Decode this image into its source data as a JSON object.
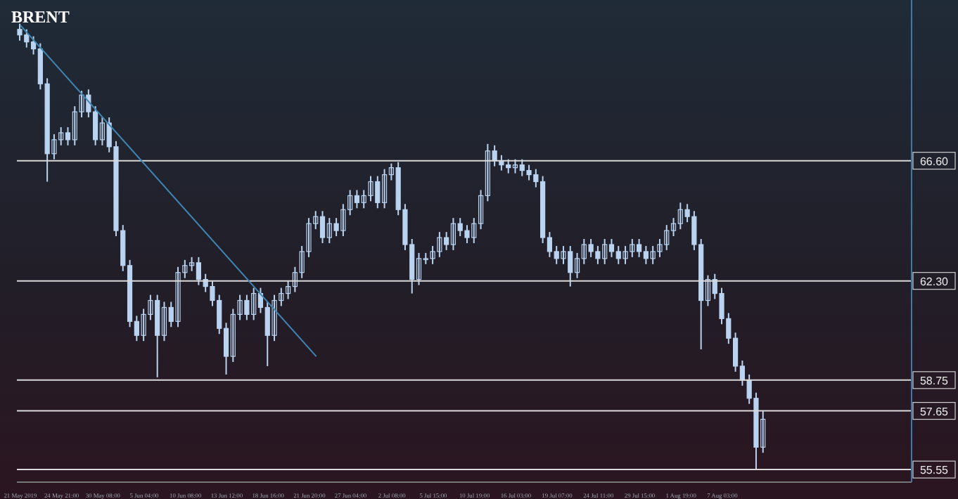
{
  "chart_data": {
    "type": "candlestick",
    "title": "BRENT",
    "color": "#b9d3f0",
    "grid": false,
    "categories": [
      "21 May 2019",
      null,
      null,
      null,
      null,
      null,
      "24 May 21:00",
      null,
      null,
      null,
      null,
      null,
      "30 May 08:00",
      null,
      null,
      null,
      null,
      null,
      "5 Jun 04:00",
      null,
      null,
      null,
      null,
      null,
      "10 Jun 08:00",
      null,
      null,
      null,
      null,
      null,
      "13 Jun 12:00",
      null,
      null,
      null,
      null,
      null,
      "18 Jun 16:00",
      null,
      null,
      null,
      null,
      null,
      "21 Jun 20:00",
      null,
      null,
      null,
      null,
      null,
      "27 Jun 04:00",
      null,
      null,
      null,
      null,
      null,
      "2 Jul 08:00",
      null,
      null,
      null,
      null,
      null,
      "5 Jul 15:00",
      null,
      null,
      null,
      null,
      null,
      "10 Jul 19:00",
      null,
      null,
      null,
      null,
      null,
      "16 Jul 03:00",
      null,
      null,
      null,
      null,
      null,
      "19 Jul 07:00",
      null,
      null,
      null,
      null,
      null,
      "24 Jul 11:00",
      null,
      null,
      null,
      null,
      null,
      "29 Jul 15:00",
      null,
      null,
      null,
      null,
      null,
      "1 Aug 19:00",
      null,
      null,
      null,
      null,
      null,
      "7 Aug 03:00",
      null,
      null,
      null,
      null,
      null,
      null,
      null,
      null,
      null,
      null,
      null,
      null,
      null,
      null,
      null,
      null,
      null,
      null,
      null,
      null,
      null,
      null,
      null,
      null,
      null,
      null,
      null
    ],
    "ohlc": [
      [
        71.3,
        71.5,
        70.9,
        71.1
      ],
      [
        71.1,
        71.3,
        70.65,
        70.85
      ],
      [
        70.85,
        71.05,
        70.4,
        70.6
      ],
      [
        70.6,
        70.8,
        69.15,
        69.35
      ],
      [
        69.35,
        69.55,
        65.85,
        66.85
      ],
      [
        66.85,
        67.55,
        66.65,
        67.35
      ],
      [
        67.35,
        67.8,
        67.15,
        67.6
      ],
      [
        67.6,
        67.8,
        67.15,
        67.35
      ],
      [
        67.35,
        68.55,
        67.15,
        68.35
      ],
      [
        68.35,
        69.1,
        68.15,
        68.95
      ],
      [
        68.95,
        69.15,
        68.15,
        68.35
      ],
      [
        68.35,
        68.55,
        67.15,
        67.35
      ],
      [
        67.35,
        68.15,
        67.15,
        67.95
      ],
      [
        67.95,
        68.15,
        66.9,
        67.1
      ],
      [
        67.1,
        67.3,
        63.9,
        64.1
      ],
      [
        64.1,
        64.3,
        62.65,
        62.85
      ],
      [
        62.85,
        63.05,
        60.65,
        60.85
      ],
      [
        60.85,
        61.05,
        60.15,
        60.35
      ],
      [
        60.35,
        61.3,
        60.15,
        61.1
      ],
      [
        61.1,
        61.8,
        60.9,
        61.6
      ],
      [
        61.6,
        61.8,
        58.85,
        60.35
      ],
      [
        60.35,
        61.55,
        60.15,
        61.35
      ],
      [
        61.35,
        61.55,
        60.65,
        60.85
      ],
      [
        60.85,
        62.8,
        60.65,
        62.6
      ],
      [
        62.6,
        63.05,
        62.4,
        62.85
      ],
      [
        62.85,
        63.15,
        62.65,
        62.95
      ],
      [
        62.95,
        63.15,
        62.15,
        62.35
      ],
      [
        62.35,
        62.55,
        61.9,
        62.1
      ],
      [
        62.1,
        62.3,
        61.4,
        61.6
      ],
      [
        61.6,
        61.8,
        60.4,
        60.6
      ],
      [
        60.6,
        60.8,
        58.95,
        59.6
      ],
      [
        59.6,
        61.3,
        59.4,
        61.1
      ],
      [
        61.1,
        61.8,
        60.9,
        61.6
      ],
      [
        61.6,
        61.8,
        60.9,
        61.1
      ],
      [
        61.1,
        62.05,
        60.9,
        61.85
      ],
      [
        61.85,
        62.05,
        61.15,
        61.35
      ],
      [
        61.35,
        61.55,
        59.25,
        60.35
      ],
      [
        60.35,
        61.8,
        60.15,
        61.6
      ],
      [
        61.6,
        62.05,
        61.4,
        61.85
      ],
      [
        61.85,
        62.3,
        61.65,
        62.1
      ],
      [
        62.1,
        62.8,
        61.9,
        62.6
      ],
      [
        62.6,
        63.55,
        62.4,
        63.35
      ],
      [
        63.35,
        64.55,
        63.15,
        64.35
      ],
      [
        64.35,
        64.8,
        64.15,
        64.6
      ],
      [
        64.6,
        64.8,
        63.65,
        63.85
      ],
      [
        63.85,
        64.55,
        63.65,
        64.35
      ],
      [
        64.35,
        64.55,
        63.9,
        64.1
      ],
      [
        64.1,
        65.05,
        63.9,
        64.85
      ],
      [
        64.85,
        65.55,
        64.65,
        65.35
      ],
      [
        65.35,
        65.55,
        64.9,
        65.1
      ],
      [
        65.1,
        65.55,
        64.9,
        65.35
      ],
      [
        65.35,
        66.05,
        65.15,
        65.85
      ],
      [
        65.85,
        66.05,
        64.9,
        65.1
      ],
      [
        65.1,
        66.3,
        64.9,
        66.1
      ],
      [
        66.1,
        66.5,
        65.9,
        66.35
      ],
      [
        66.35,
        66.55,
        64.65,
        64.85
      ],
      [
        64.85,
        65.05,
        63.4,
        63.6
      ],
      [
        63.6,
        63.8,
        61.85,
        62.35
      ],
      [
        62.35,
        63.3,
        62.15,
        63.1
      ],
      [
        63.1,
        63.3,
        62.9,
        63.1
      ],
      [
        63.1,
        63.55,
        62.9,
        63.35
      ],
      [
        63.35,
        64.05,
        63.15,
        63.85
      ],
      [
        63.85,
        64.05,
        63.4,
        63.6
      ],
      [
        63.6,
        64.55,
        63.4,
        64.35
      ],
      [
        64.35,
        64.55,
        63.9,
        64.1
      ],
      [
        64.1,
        64.3,
        63.65,
        63.85
      ],
      [
        63.85,
        64.55,
        63.65,
        64.35
      ],
      [
        64.35,
        65.55,
        64.15,
        65.35
      ],
      [
        65.35,
        67.2,
        65.15,
        66.95
      ],
      [
        66.95,
        67.15,
        66.4,
        66.6
      ],
      [
        66.6,
        66.8,
        66.25,
        66.45
      ],
      [
        66.45,
        66.65,
        66.15,
        66.35
      ],
      [
        66.35,
        66.65,
        66.15,
        66.45
      ],
      [
        66.45,
        66.65,
        66.05,
        66.25
      ],
      [
        66.25,
        66.45,
        65.9,
        66.1
      ],
      [
        66.1,
        66.3,
        65.65,
        65.85
      ],
      [
        65.85,
        66.05,
        63.65,
        63.85
      ],
      [
        63.85,
        64.05,
        63.15,
        63.35
      ],
      [
        63.35,
        63.55,
        62.9,
        63.1
      ],
      [
        63.1,
        63.55,
        62.9,
        63.35
      ],
      [
        63.35,
        63.55,
        62.1,
        62.6
      ],
      [
        62.6,
        63.3,
        62.4,
        63.1
      ],
      [
        63.1,
        63.8,
        62.9,
        63.6
      ],
      [
        63.6,
        63.8,
        63.15,
        63.35
      ],
      [
        63.35,
        63.55,
        62.9,
        63.1
      ],
      [
        63.1,
        63.8,
        62.9,
        63.6
      ],
      [
        63.6,
        63.8,
        63.15,
        63.35
      ],
      [
        63.35,
        63.55,
        62.9,
        63.1
      ],
      [
        63.1,
        63.55,
        62.9,
        63.35
      ],
      [
        63.35,
        63.8,
        63.15,
        63.6
      ],
      [
        63.6,
        63.8,
        63.15,
        63.35
      ],
      [
        63.35,
        63.55,
        62.9,
        63.1
      ],
      [
        63.1,
        63.55,
        62.9,
        63.35
      ],
      [
        63.35,
        63.8,
        63.15,
        63.6
      ],
      [
        63.6,
        64.3,
        63.4,
        64.1
      ],
      [
        64.1,
        64.55,
        63.9,
        64.35
      ],
      [
        64.35,
        65.1,
        64.15,
        64.85
      ],
      [
        64.85,
        65.05,
        64.4,
        64.6
      ],
      [
        64.6,
        64.8,
        63.4,
        63.6
      ],
      [
        63.6,
        63.8,
        59.85,
        61.6
      ],
      [
        61.6,
        62.5,
        61.4,
        62.35
      ],
      [
        62.35,
        62.55,
        61.65,
        61.85
      ],
      [
        61.85,
        62.05,
        60.75,
        60.95
      ],
      [
        60.95,
        61.15,
        60.05,
        60.25
      ],
      [
        60.25,
        60.45,
        59.05,
        59.25
      ],
      [
        59.25,
        59.45,
        58.55,
        58.75
      ],
      [
        58.75,
        58.95,
        57.9,
        58.1
      ],
      [
        58.1,
        58.3,
        55.55,
        56.35
      ],
      [
        56.35,
        57.65,
        56.15,
        57.35
      ],
      null,
      null,
      null,
      null,
      null,
      null,
      null,
      null,
      null,
      null,
      null,
      null,
      null,
      null,
      null,
      null,
      null,
      null,
      null,
      null,
      null
    ],
    "series": [
      {
        "type": "line",
        "color": "#3f86b5",
        "values": [
          71.45,
          null,
          null,
          null,
          null,
          null,
          null,
          null,
          null,
          null,
          null,
          null,
          null,
          null,
          null,
          null,
          null,
          null,
          null,
          null,
          null,
          null,
          null,
          null,
          null,
          null,
          null,
          null,
          null,
          null,
          null,
          null,
          null,
          null,
          null,
          null,
          null,
          null,
          null,
          null,
          null,
          null,
          null,
          59.6,
          null,
          null,
          null,
          null,
          null,
          null,
          null,
          null,
          null,
          null,
          null,
          null,
          null,
          null,
          null,
          null,
          null,
          null,
          null,
          null,
          null,
          null,
          null,
          null,
          null,
          null,
          null,
          null,
          null,
          null,
          null,
          null,
          null,
          null,
          null,
          null,
          null,
          null,
          null,
          null,
          null,
          null,
          null,
          null,
          null,
          null,
          null,
          null,
          null,
          null,
          null,
          null,
          null,
          null,
          null,
          null,
          null,
          null,
          null,
          null,
          null,
          null,
          null,
          null,
          null,
          null,
          null,
          null,
          null,
          null,
          null,
          null,
          null,
          null,
          null,
          null,
          null,
          null,
          null,
          null,
          null,
          null,
          null,
          null,
          null,
          null
        ]
      }
    ],
    "ylim": [
      55.1,
      72.35
    ],
    "yticks": [
      {
        "value": 66.6,
        "label": "66.60"
      },
      {
        "value": 62.3,
        "label": "62.30"
      },
      {
        "value": 58.75,
        "label": "58.75"
      },
      {
        "value": 57.65,
        "label": "57.65"
      },
      {
        "value": 55.55,
        "label": "55.55"
      }
    ],
    "ref_lines": [
      {
        "axis": "y",
        "value": 66.6,
        "color": "#d9d9d9"
      },
      {
        "axis": "y",
        "value": 62.3,
        "color": "#d9d9d9"
      },
      {
        "axis": "y",
        "value": 58.75,
        "color": "#d9d9d9"
      },
      {
        "axis": "y",
        "value": 57.65,
        "color": "#d9d9d9"
      },
      {
        "axis": "y",
        "value": 55.55,
        "color": "#d9d9d9"
      }
    ]
  }
}
